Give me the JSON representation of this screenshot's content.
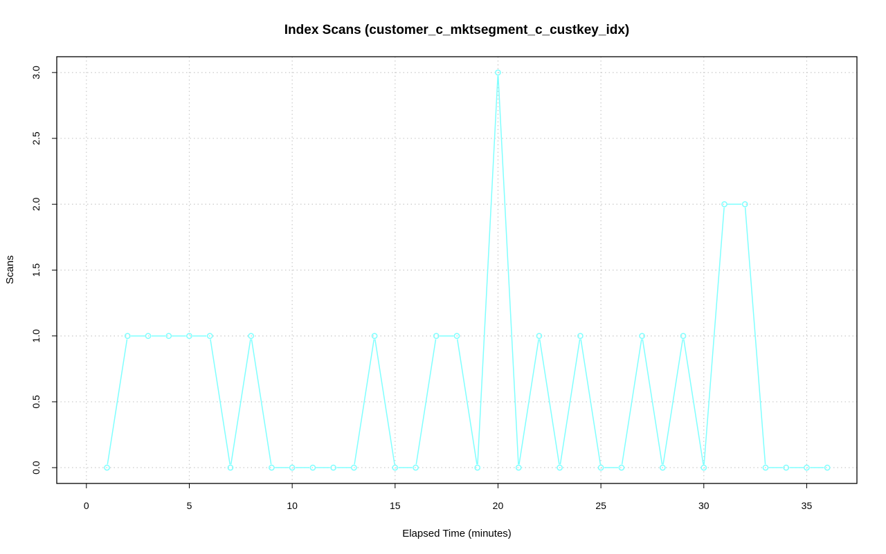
{
  "chart_data": {
    "type": "line",
    "title": "Index Scans (customer_c_mktsegment_c_custkey_idx)",
    "xlabel": "Elapsed Time (minutes)",
    "ylabel": "Scans",
    "xlim": [
      -1.44,
      37.44
    ],
    "ylim": [
      -0.12,
      3.12
    ],
    "x_ticks": [
      0,
      5,
      10,
      15,
      20,
      25,
      30,
      35
    ],
    "x_tick_labels": [
      "0",
      "5",
      "10",
      "15",
      "20",
      "25",
      "30",
      "35"
    ],
    "y_ticks": [
      0,
      0.5,
      1,
      1.5,
      2,
      2.5,
      3
    ],
    "y_tick_labels": [
      "0.0",
      "0.5",
      "1.0",
      "1.5",
      "2.0",
      "2.5",
      "3.0"
    ],
    "grid": true,
    "series": [
      {
        "color": "#7FFFFF",
        "marker": "circle",
        "x": [
          1,
          2,
          3,
          4,
          5,
          6,
          7,
          8,
          9,
          10,
          11,
          12,
          13,
          14,
          15,
          16,
          17,
          18,
          19,
          20,
          21,
          22,
          23,
          24,
          25,
          26,
          27,
          28,
          29,
          30,
          31,
          32,
          33,
          34,
          35,
          36
        ],
        "values": [
          0,
          1,
          1,
          1,
          1,
          1,
          0,
          1,
          0,
          0,
          0,
          0,
          0,
          1,
          0,
          0,
          1,
          1,
          0,
          3,
          0,
          1,
          0,
          1,
          0,
          0,
          1,
          0,
          1,
          0,
          2,
          2,
          0,
          0,
          0,
          0
        ]
      }
    ]
  }
}
